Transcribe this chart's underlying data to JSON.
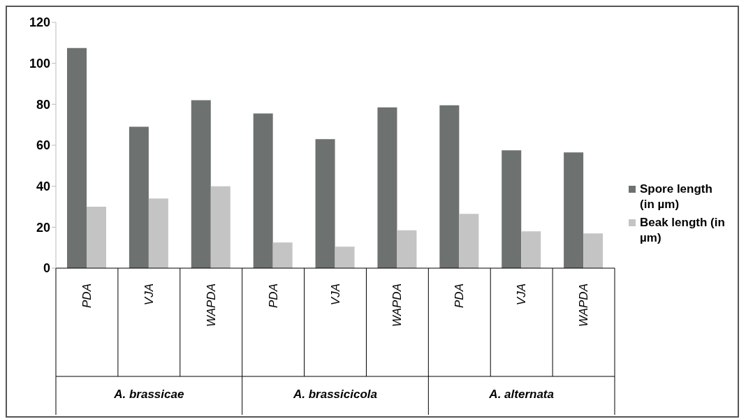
{
  "chart_data": {
    "type": "bar",
    "categories": [
      "PDA",
      "VJA",
      "WAPDA",
      "PDA",
      "VJA",
      "WAPDA",
      "PDA",
      "VJA",
      "WAPDA"
    ],
    "series": [
      {
        "name": "Spore length (in µm)",
        "color": "#6d7170",
        "values": [
          107.5,
          69,
          82,
          75.5,
          63,
          78.5,
          79.5,
          57.5,
          56.5
        ]
      },
      {
        "name": "Beak length (in µm)",
        "color": "#c4c4c4",
        "values": [
          30,
          34,
          40,
          12.5,
          10.5,
          18.5,
          26.5,
          18,
          17
        ]
      }
    ],
    "annotations": [
      "A. brassicae",
      "A. brassicicola",
      "A. alternata"
    ],
    "ylim": [
      0,
      120
    ],
    "yticks": [
      0,
      20,
      40,
      60,
      80,
      100,
      120
    ],
    "legend": "right"
  }
}
